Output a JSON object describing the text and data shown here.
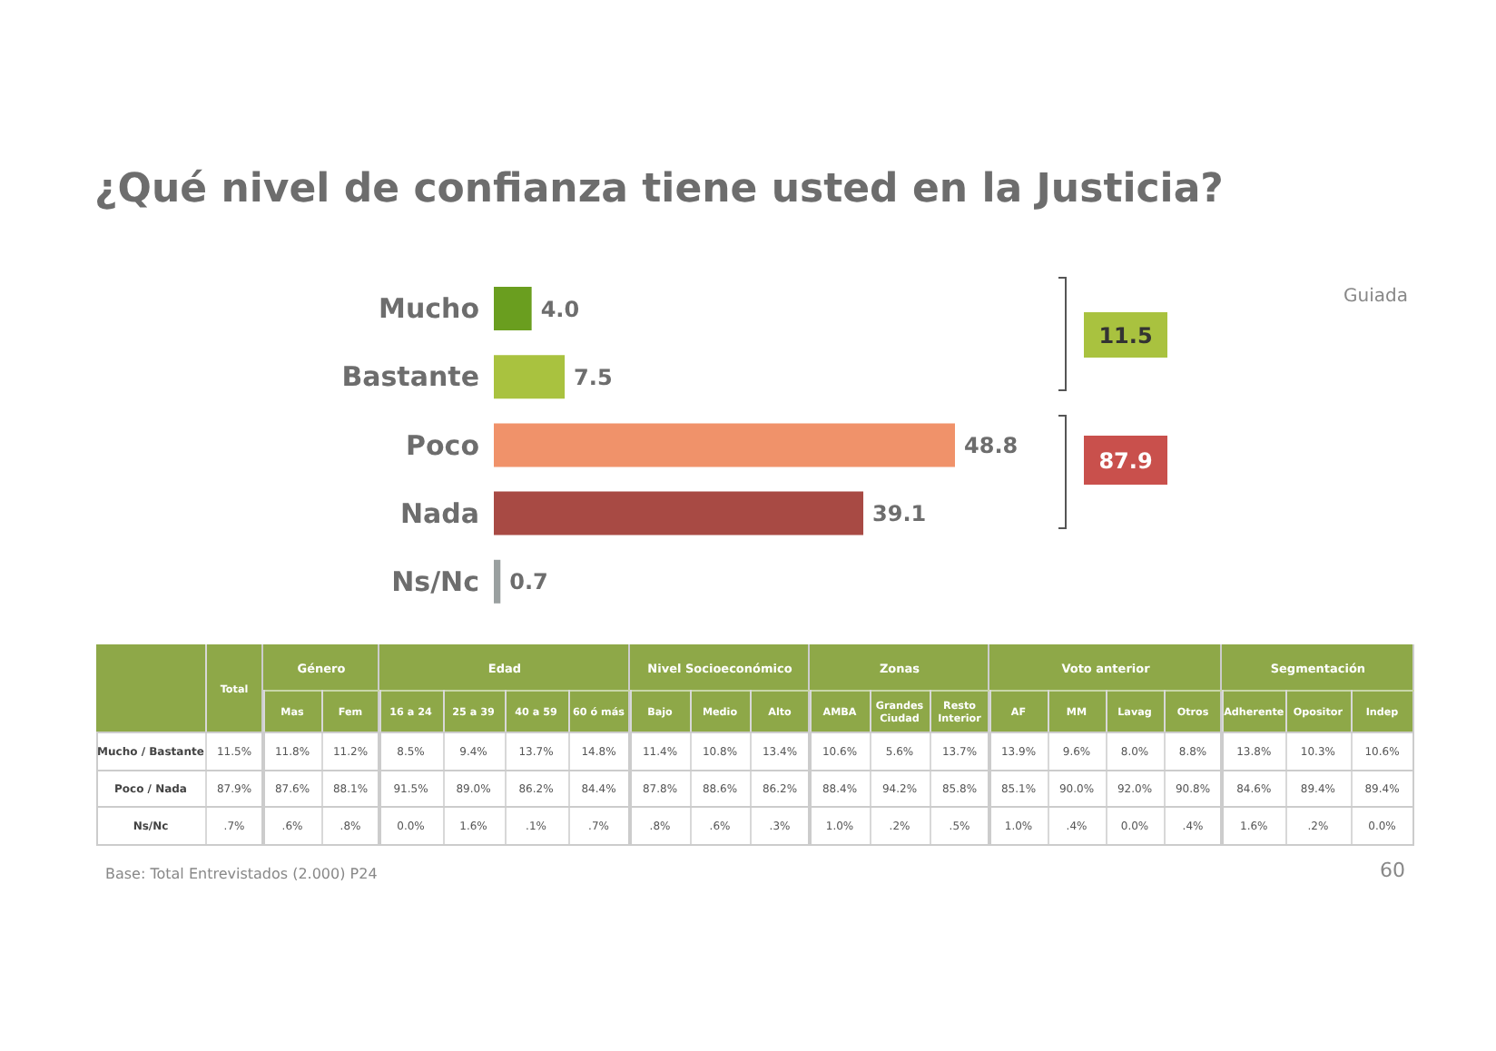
{
  "chart_data": [
    {
      "type": "bar",
      "title": "¿Qué nivel de confianza tiene usted en la Justicia?",
      "orientation": "horizontal",
      "categories": [
        "Mucho",
        "Bastante",
        "Poco",
        "Nada",
        "Ns/Nc"
      ],
      "values": [
        4.0,
        7.5,
        48.8,
        39.1,
        0.7
      ],
      "value_labels": [
        "4.0",
        "7.5",
        "48.8",
        "39.1",
        "0.7"
      ],
      "colors": [
        "#6a9e1f",
        "#a9c23f",
        "#f0926a",
        "#a84a44",
        "#9aa0a0"
      ],
      "annotations": [
        "Guiada",
        "11.5",
        "87.9",
        "Base: Total Entrevistados (2.000) P24",
        "60"
      ]
    },
    {
      "type": "heatmap",
      "categories": [
        "Total"
      ],
      "y_categories": [
        "Mucho / Bastante",
        "Poco / Nada",
        "Ns/Nc"
      ],
      "cells": [
        [
          11.5
        ],
        [
          87.9
        ],
        [
          0.7
        ]
      ],
      "cell_labels": [
        [
          "11.5%"
        ],
        [
          "87.9%"
        ],
        [
          ".7%"
        ]
      ]
    },
    {
      "type": "heatmap",
      "title": "Género",
      "categories": [
        "Mas",
        "Fem"
      ],
      "y_categories": [
        "Mucho / Bastante",
        "Poco / Nada",
        "Ns/Nc"
      ],
      "tick_labels": "x",
      "cells": [
        [
          11.8,
          11.2
        ],
        [
          87.6,
          88.1
        ],
        [
          0.6,
          0.8
        ]
      ],
      "cell_labels": [
        [
          "11.8%",
          "11.2%"
        ],
        [
          "87.6%",
          "88.1%"
        ],
        [
          ".6%",
          ".8%"
        ]
      ]
    },
    {
      "type": "heatmap",
      "title": "Edad",
      "categories": [
        "16 a 24",
        "25 a 39",
        "40 a 59",
        "60 ó más"
      ],
      "y_categories": [
        "Mucho / Bastante",
        "Poco / Nada",
        "Ns/Nc"
      ],
      "tick_labels": "x",
      "cells": [
        [
          8.5,
          9.4,
          13.7,
          14.8
        ],
        [
          91.5,
          89.0,
          86.2,
          84.4
        ],
        [
          0.0,
          1.6,
          0.1,
          0.7
        ]
      ],
      "cell_labels": [
        [
          "8.5%",
          "9.4%",
          "13.7%",
          "14.8%"
        ],
        [
          "91.5%",
          "89.0%",
          "86.2%",
          "84.4%"
        ],
        [
          "0.0%",
          "1.6%",
          ".1%",
          ".7%"
        ]
      ]
    },
    {
      "type": "heatmap",
      "title": "Nivel Socioeconómico",
      "categories": [
        "Bajo",
        "Medio",
        "Alto"
      ],
      "y_categories": [
        "Mucho / Bastante",
        "Poco / Nada",
        "Ns/Nc"
      ],
      "tick_labels": "x",
      "cells": [
        [
          11.4,
          10.8,
          13.4
        ],
        [
          87.8,
          88.6,
          86.2
        ],
        [
          0.8,
          0.6,
          0.3
        ]
      ],
      "cell_labels": [
        [
          "11.4%",
          "10.8%",
          "13.4%"
        ],
        [
          "87.8%",
          "88.6%",
          "86.2%"
        ],
        [
          ".8%",
          ".6%",
          ".3%"
        ]
      ]
    },
    {
      "type": "heatmap",
      "title": "Zonas",
      "categories": [
        "AMBA",
        "Grandes Ciudad",
        "Resto Interior"
      ],
      "y_categories": [
        "Mucho / Bastante",
        "Poco / Nada",
        "Ns/Nc"
      ],
      "tick_labels": "x",
      "cells": [
        [
          10.6,
          5.6,
          13.7
        ],
        [
          88.4,
          94.2,
          85.8
        ],
        [
          1.0,
          0.2,
          0.5
        ]
      ],
      "cell_labels": [
        [
          "10.6%",
          "5.6%",
          "13.7%"
        ],
        [
          "88.4%",
          "94.2%",
          "85.8%"
        ],
        [
          "1.0%",
          ".2%",
          ".5%"
        ]
      ]
    },
    {
      "type": "heatmap",
      "title": "Voto anterior",
      "categories": [
        "AF",
        "MM",
        "Lavag",
        "Otros"
      ],
      "y_categories": [
        "Mucho / Bastante",
        "Poco / Nada",
        "Ns/Nc"
      ],
      "tick_labels": "x",
      "cells": [
        [
          13.9,
          9.6,
          8.0,
          8.8
        ],
        [
          85.1,
          90.0,
          92.0,
          90.8
        ],
        [
          1.0,
          0.4,
          0.0,
          0.4
        ]
      ],
      "cell_labels": [
        [
          "13.9%",
          "9.6%",
          "8.0%",
          "8.8%"
        ],
        [
          "85.1%",
          "90.0%",
          "92.0%",
          "90.8%"
        ],
        [
          "1.0%",
          ".4%",
          "0.0%",
          ".4%"
        ]
      ]
    },
    {
      "type": "heatmap",
      "title": "Segmentación",
      "categories": [
        "Adherente",
        "Opositor",
        "Indep"
      ],
      "y_categories": [
        "Mucho / Bastante",
        "Poco / Nada",
        "Ns/Nc"
      ],
      "tick_labels": "x",
      "cells": [
        [
          13.8,
          10.3,
          10.6
        ],
        [
          84.6,
          89.4,
          89.4
        ],
        [
          1.6,
          0.2,
          0.0
        ]
      ],
      "cell_labels": [
        [
          "13.8%",
          "10.3%",
          "10.6%"
        ],
        [
          "84.6%",
          "89.4%",
          "89.4%"
        ],
        [
          "1.6%",
          ".2%",
          "0.0%"
        ]
      ]
    }
  ]
}
